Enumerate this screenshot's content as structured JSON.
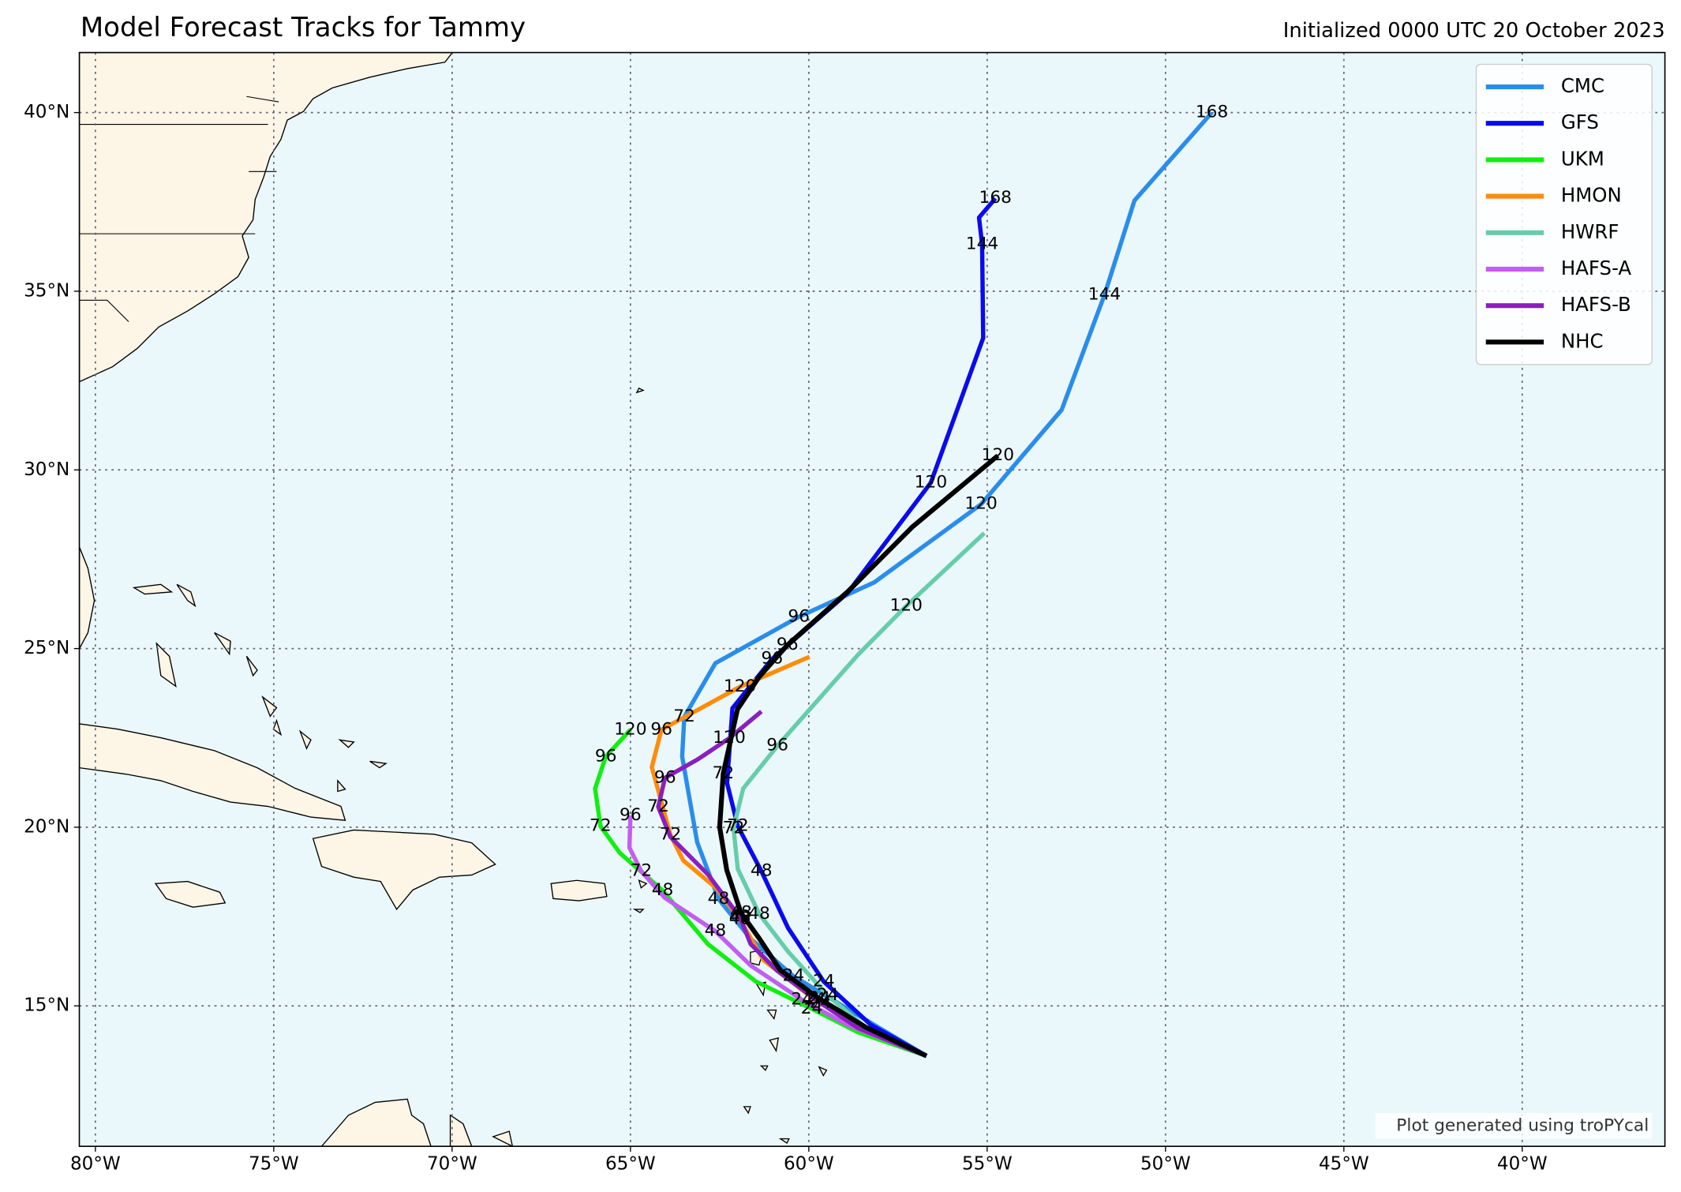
{
  "chart_data": {
    "type": "line",
    "title": "Model Forecast Tracks for Tammy",
    "subtitle": "Initialized 0000 UTC 20 October 2023",
    "footnote": "Plot generated using troPYcal",
    "xlim": [
      -80.45,
      -36.0
    ],
    "ylim": [
      11.07,
      41.68
    ],
    "xticks": [
      {
        "value": -80,
        "label": "80°W"
      },
      {
        "value": -75,
        "label": "75°W"
      },
      {
        "value": -70,
        "label": "70°W"
      },
      {
        "value": -65,
        "label": "65°W"
      },
      {
        "value": -60,
        "label": "60°W"
      },
      {
        "value": -55,
        "label": "55°W"
      },
      {
        "value": -50,
        "label": "50°W"
      },
      {
        "value": -45,
        "label": "45°W"
      },
      {
        "value": -40,
        "label": "40°W"
      }
    ],
    "yticks": [
      {
        "value": 15,
        "label": "15°N"
      },
      {
        "value": 20,
        "label": "20°N"
      },
      {
        "value": 25,
        "label": "25°N"
      },
      {
        "value": 30,
        "label": "30°N"
      },
      {
        "value": 35,
        "label": "35°N"
      },
      {
        "value": 40,
        "label": "40°N"
      }
    ],
    "grid": true,
    "legend": "upper right",
    "series": [
      {
        "name": "CMC",
        "color": "#2a8ded",
        "x": [
          -56.7,
          -58.17,
          -60.43,
          -61.63,
          -62.53,
          -63.13,
          -63.55,
          -63.49,
          -62.62,
          -60.28,
          -58.17,
          -55.17,
          -52.91,
          -51.71,
          -50.87,
          -48.7
        ],
        "values": [
          13.6,
          14.47,
          15.83,
          16.88,
          17.99,
          19.58,
          21.98,
          23.09,
          24.59,
          25.89,
          26.85,
          29.04,
          31.68,
          34.9,
          37.54,
          40.0
        ],
        "point_labels": [
          null,
          null,
          "24",
          null,
          "48",
          null,
          null,
          "72",
          null,
          "96",
          null,
          "120",
          null,
          "144",
          null,
          "168"
        ]
      },
      {
        "name": "GFS",
        "color": "#0a0aee",
        "x": [
          -56.7,
          -58.26,
          -59.58,
          -60.58,
          -61.33,
          -61.99,
          -62.29,
          -62.14,
          -61.03,
          -58.92,
          -56.58,
          -55.11,
          -55.14,
          -55.23,
          -54.77
        ],
        "values": [
          13.6,
          14.47,
          15.68,
          17.18,
          18.77,
          20.03,
          21.23,
          23.33,
          24.71,
          26.55,
          29.64,
          33.69,
          36.31,
          37.06,
          37.6
        ],
        "point_labels": [
          null,
          null,
          "24",
          null,
          "48",
          "72",
          null,
          null,
          "96",
          null,
          "120",
          null,
          "144",
          null,
          "168"
        ]
      },
      {
        "name": "UKM",
        "color": "#11ee11",
        "x": [
          -56.7,
          -58.62,
          -59.92,
          -61.48,
          -62.83,
          -64.1,
          -65.3,
          -65.84,
          -65.99,
          -65.69,
          -65.0
        ],
        "values": [
          13.6,
          14.26,
          14.92,
          15.68,
          16.73,
          18.23,
          19.28,
          20.03,
          21.08,
          21.98,
          22.73
        ],
        "point_labels": [
          null,
          null,
          "24",
          null,
          null,
          "48",
          null,
          "72",
          null,
          "96",
          "120"
        ]
      },
      {
        "name": "HMON",
        "color": "#ff8c0a",
        "x": [
          -56.7,
          -58.62,
          -59.83,
          -61.27,
          -61.93,
          -62.59,
          -63.52,
          -63.88,
          -64.4,
          -64.13,
          -61.93,
          -59.98
        ],
        "values": [
          13.6,
          14.47,
          15.17,
          16.28,
          17.42,
          18.29,
          19.07,
          19.79,
          21.68,
          22.73,
          23.93,
          24.77
        ],
        "point_labels": [
          null,
          null,
          "24",
          null,
          "48",
          null,
          null,
          "72",
          null,
          "96",
          "120",
          null
        ]
      },
      {
        "name": "HWRF",
        "color": "#66cdaa",
        "x": [
          -56.7,
          -58.32,
          -59.47,
          -60.58,
          -61.39,
          -61.99,
          -62.11,
          -61.84,
          -60.88,
          -58.62,
          -57.27,
          -55.08
        ],
        "values": [
          13.6,
          14.32,
          15.29,
          16.52,
          17.57,
          18.83,
          19.97,
          21.08,
          22.28,
          24.83,
          26.19,
          28.23
        ],
        "point_labels": [
          null,
          null,
          "24",
          null,
          "48",
          null,
          "72",
          null,
          "96",
          null,
          "120",
          null
        ]
      },
      {
        "name": "HAFS-A",
        "color": "#c25ef0",
        "x": [
          -56.7,
          -58.92,
          -60.19,
          -61.63,
          -62.62,
          -64.03,
          -64.7,
          -65.03,
          -65.0
        ],
        "values": [
          13.6,
          14.47,
          15.17,
          16.13,
          17.09,
          18.02,
          18.77,
          19.43,
          20.33
        ],
        "point_labels": [
          null,
          null,
          "24",
          null,
          "48",
          null,
          "72",
          null,
          "96"
        ]
      },
      {
        "name": "HAFS-B",
        "color": "#8a1fbf",
        "x": [
          -56.7,
          -58.62,
          -59.67,
          -60.88,
          -61.63,
          -61.93,
          -62.83,
          -63.88,
          -64.22,
          -64.03,
          -63.13,
          -62.23,
          -61.33
        ],
        "values": [
          13.6,
          14.38,
          15.08,
          15.98,
          16.73,
          17.48,
          18.68,
          19.73,
          20.57,
          21.38,
          21.89,
          22.49,
          23.24
        ],
        "point_labels": [
          null,
          null,
          "24",
          null,
          null,
          "48",
          null,
          null,
          "72",
          "96",
          null,
          "120",
          null
        ]
      },
      {
        "name": "NHC",
        "color": "#000000",
        "x": [
          -56.7,
          -58.4,
          -59.7,
          -60.8,
          -61.4,
          -61.9,
          -62.3,
          -62.5,
          -62.4,
          -62.0,
          -61.4,
          -60.6,
          -58.9,
          -57.1,
          -54.7
        ],
        "values": [
          13.6,
          14.4,
          15.2,
          16.0,
          16.9,
          17.6,
          18.8,
          20.0,
          21.5,
          23.3,
          24.2,
          25.1,
          26.6,
          28.4,
          30.4
        ],
        "point_labels": [
          null,
          null,
          "24",
          null,
          null,
          "48",
          null,
          null,
          "72",
          null,
          null,
          "96",
          null,
          null,
          "120"
        ]
      }
    ]
  }
}
